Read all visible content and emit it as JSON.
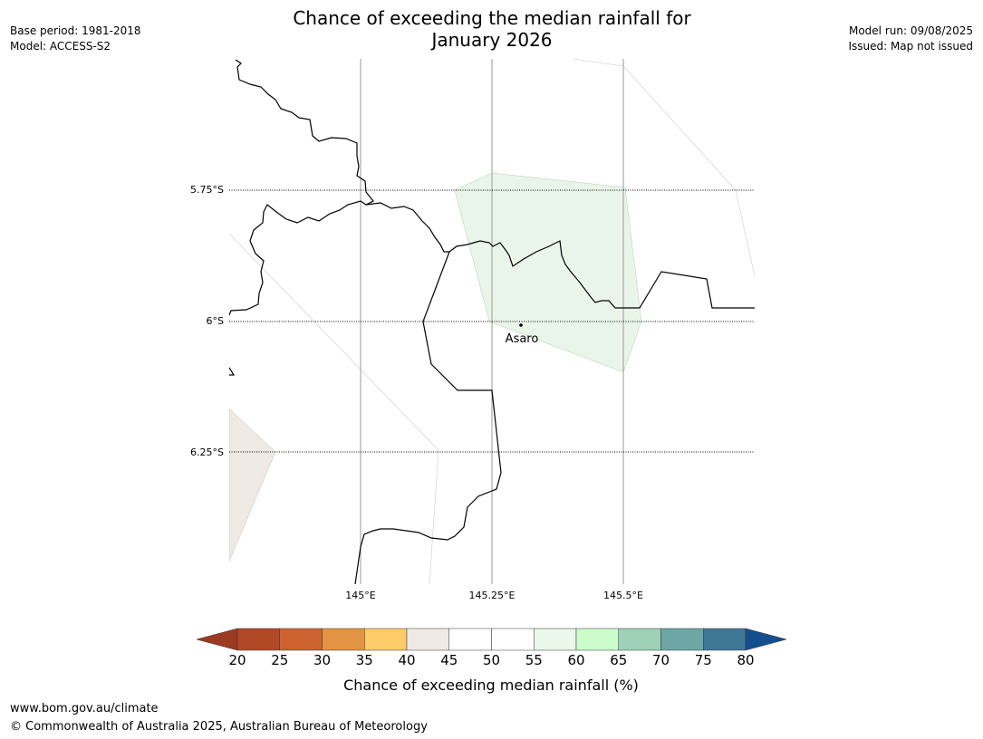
{
  "header": {
    "title_line1": "Chance of exceeding the median rainfall for",
    "title_line2": "January 2026",
    "base_period": "Base period: 1981-2018",
    "model": "Model: ACCESS-S2",
    "model_run": "Model run: 09/08/2025",
    "issued": "Issued: Map not issued"
  },
  "map": {
    "lat_labels": [
      "5.75°S",
      "6°S",
      "6.25°S"
    ],
    "lon_labels": [
      "145°E",
      "145.25°E",
      "145.5°E"
    ],
    "place": {
      "name": "Asaro"
    },
    "colors": {
      "green_region": "#eaf5ea",
      "beige_region": "#efe9e4",
      "coastline": "#000000",
      "gridline": "#999999"
    }
  },
  "colorbar": {
    "title": "Chance of exceeding median rainfall (%)",
    "ticks": [
      "20",
      "25",
      "30",
      "35",
      "40",
      "45",
      "50",
      "55",
      "60",
      "65",
      "70",
      "75",
      "80"
    ],
    "under_color": "#9c3a22",
    "over_color": "#134f8c",
    "colors": [
      "#b24926",
      "#cd6331",
      "#e29444",
      "#fdcb67",
      "#efeae6",
      "#ffffff",
      "#ffffff",
      "#eaf7ea",
      "#ccfccc",
      "#9fd0b8",
      "#6ea6a6",
      "#3f7797"
    ]
  },
  "footer": {
    "url": "www.bom.gov.au/climate",
    "copyright": "© Commonwealth of Australia 2025, Australian Bureau of Meteorology"
  }
}
